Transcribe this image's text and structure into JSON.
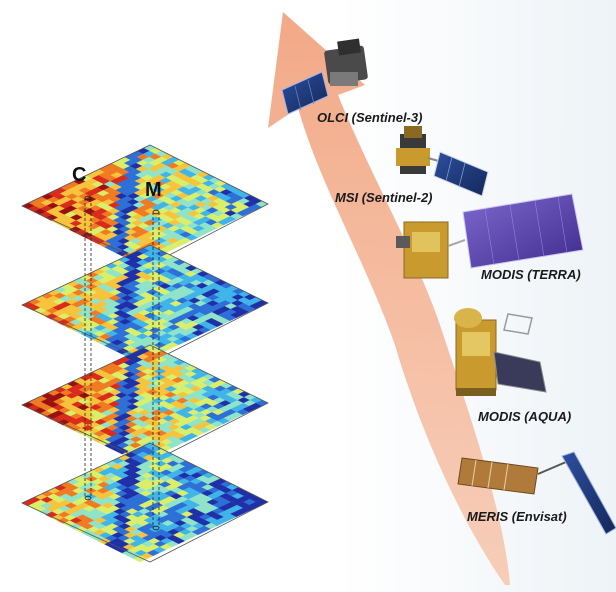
{
  "markers": {
    "c": "C",
    "m": "M"
  },
  "satellites": [
    {
      "label": "OLCI (Sentinel-3)"
    },
    {
      "label": "MSI (Sentinel-2)"
    },
    {
      "label": "MODIS (TERRA)"
    },
    {
      "label": "MODIS (AQUA)"
    },
    {
      "label": "MERIS (Envisat)"
    }
  ],
  "colors": {
    "arrow": "#f4b89a",
    "panel": "#5b3fb0",
    "body_gold": "#c99a2e",
    "body_grey": "#6e6e6e"
  }
}
